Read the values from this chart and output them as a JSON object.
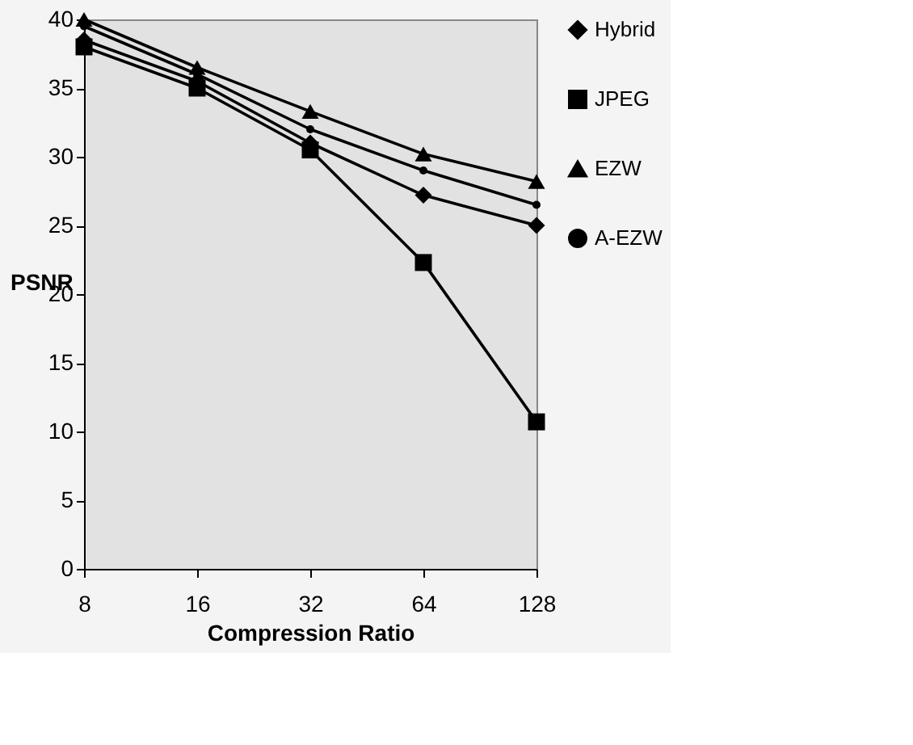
{
  "chart_data": {
    "type": "line",
    "xlabel": "Compression Ratio",
    "ylabel": "PSNR",
    "categories": [
      "8",
      "16",
      "32",
      "64",
      "128"
    ],
    "ylim": [
      0,
      40
    ],
    "yticks": [
      0,
      5,
      10,
      15,
      20,
      25,
      30,
      35,
      40
    ],
    "grid": false,
    "legend": "right",
    "series": [
      {
        "name": "Hybrid",
        "color": "#000000",
        "marker": "diamond",
        "values": [
          38.5,
          35.5,
          31,
          27.2,
          25
        ]
      },
      {
        "name": "JPEG",
        "color": "#000000",
        "marker": "square",
        "values": [
          38,
          35,
          30.5,
          22.3,
          10.7
        ]
      },
      {
        "name": "EZW",
        "color": "#000000",
        "marker": "triangle",
        "values": [
          40,
          36.5,
          33.3,
          30.2,
          28.2
        ]
      },
      {
        "name": "A-EZW",
        "color": "#000000",
        "marker": "circle",
        "values": [
          39.5,
          36,
          32,
          29,
          26.5
        ]
      }
    ]
  }
}
